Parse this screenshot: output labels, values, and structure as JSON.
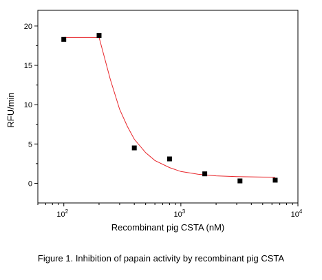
{
  "chart_data": {
    "type": "scatter",
    "x_scale": "log",
    "xlim": [
      60,
      10000
    ],
    "ylim": [
      -2.5,
      22
    ],
    "xlabel": "Recombinant pig CSTA (nM)",
    "ylabel": "RFU/min",
    "y_ticks": [
      {
        "value": 0,
        "label": "0"
      },
      {
        "value": 5,
        "label": "5"
      },
      {
        "value": 10,
        "label": "10"
      },
      {
        "value": 15,
        "label": "15"
      },
      {
        "value": 20,
        "label": "20"
      }
    ],
    "x_ticks": [
      {
        "value": 100,
        "base": "10",
        "exp": "2"
      },
      {
        "value": 1000,
        "base": "10",
        "exp": "3"
      },
      {
        "value": 10000,
        "base": "10",
        "exp": "4"
      }
    ],
    "series": [
      {
        "marker": "square",
        "color": "#000000",
        "points": [
          {
            "x": 100,
            "y": 18.3
          },
          {
            "x": 200,
            "y": 18.8
          },
          {
            "x": 400,
            "y": 4.5
          },
          {
            "x": 800,
            "y": 3.1
          },
          {
            "x": 1600,
            "y": 1.2
          },
          {
            "x": 3200,
            "y": 0.3
          },
          {
            "x": 6400,
            "y": 0.4
          }
        ]
      }
    ],
    "fit": {
      "color": "#e8262b",
      "points": [
        {
          "x": 100,
          "y": 18.55
        },
        {
          "x": 200,
          "y": 18.55
        },
        {
          "x": 250,
          "y": 13.2
        },
        {
          "x": 300,
          "y": 9.4
        },
        {
          "x": 350,
          "y": 7.2
        },
        {
          "x": 400,
          "y": 5.6
        },
        {
          "x": 500,
          "y": 3.9
        },
        {
          "x": 600,
          "y": 2.9
        },
        {
          "x": 800,
          "y": 2.0
        },
        {
          "x": 1000,
          "y": 1.5
        },
        {
          "x": 1400,
          "y": 1.15
        },
        {
          "x": 2000,
          "y": 0.95
        },
        {
          "x": 3000,
          "y": 0.85
        },
        {
          "x": 4500,
          "y": 0.8
        },
        {
          "x": 6400,
          "y": 0.78
        }
      ]
    },
    "grid": false,
    "legend": "none"
  },
  "caption": "Figure 1. Inhibition of papain activity by recombinant pig CSTA"
}
